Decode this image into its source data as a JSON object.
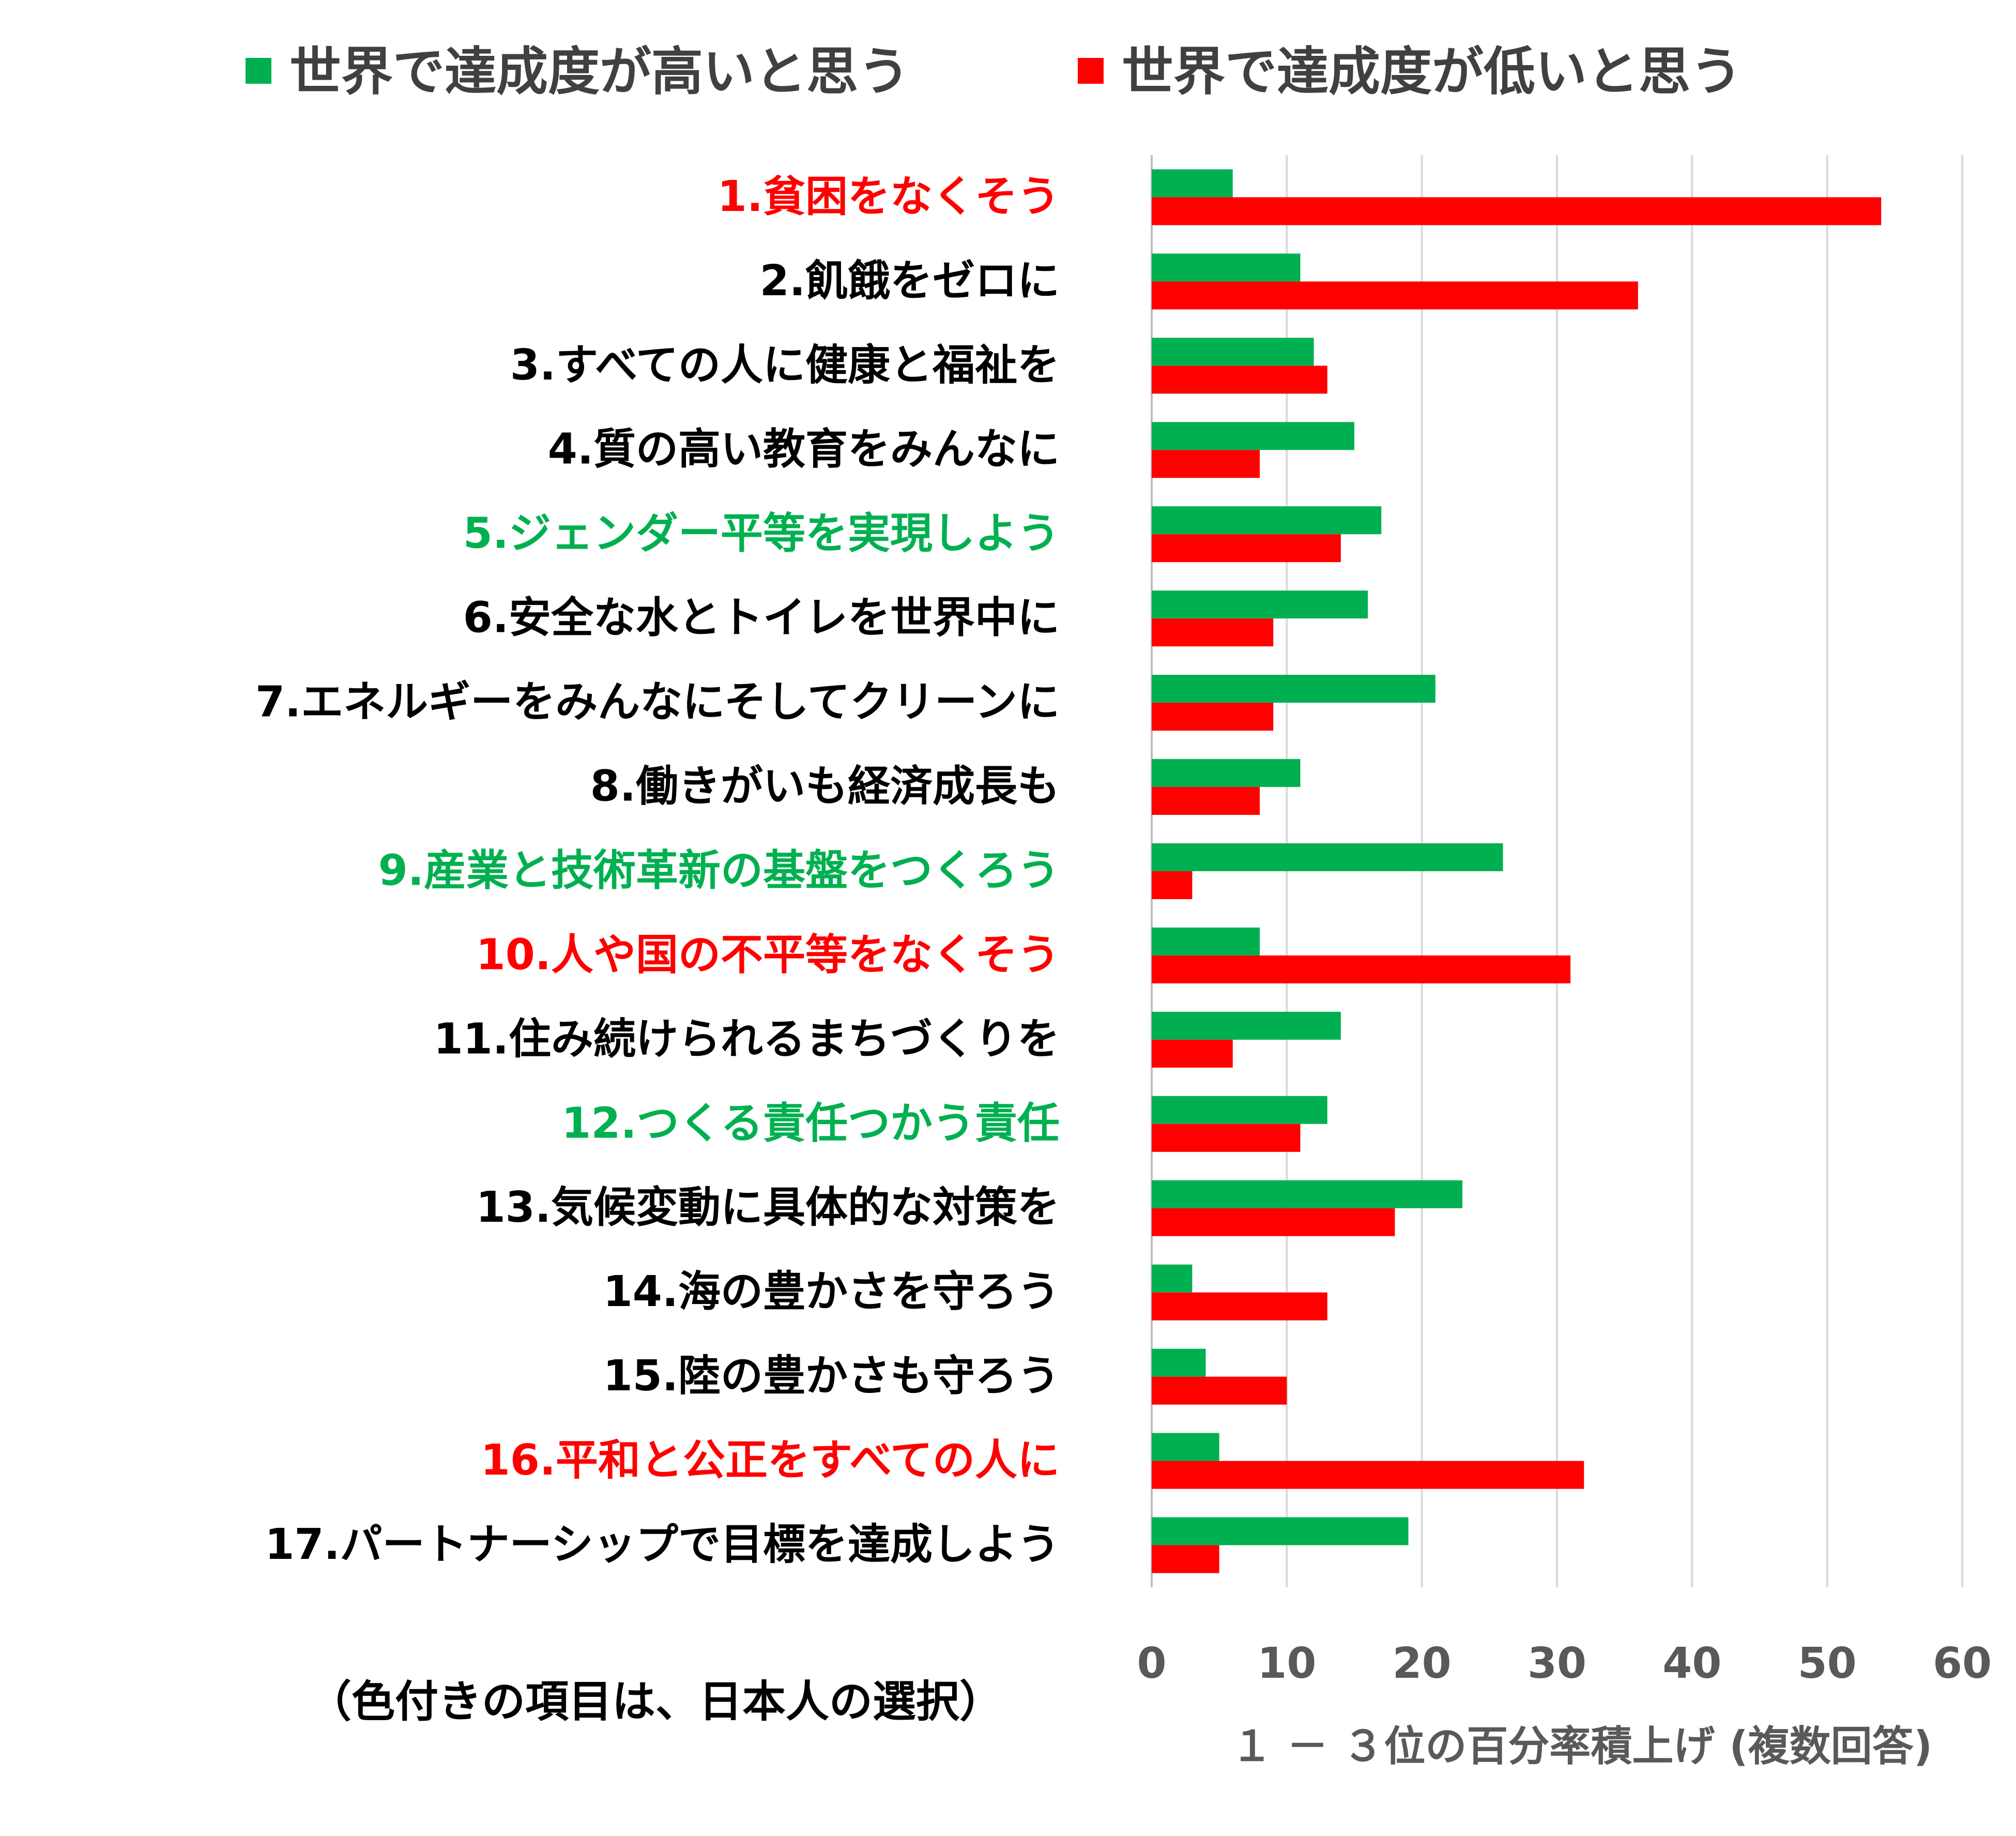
{
  "chart_data": {
    "type": "bar",
    "orientation": "horizontal",
    "categories": [
      "1.貧困をなくそう",
      "2.飢餓をゼロに",
      "3.すべての人に健康と福祉を",
      "4.質の高い教育をみんなに",
      "5.ジェンダー平等を実現しよう",
      "6.安全な水とトイレを世界中に",
      "7.エネルギーをみんなにそしてクリーンに",
      "8.働きがいも経済成長も",
      "9.産業と技術革新の基盤をつくろう",
      "10.人や国の不平等をなくそう",
      "11.住み続けられるまちづくりを",
      "12.つくる責任つかう責任",
      "13.気候変動に具体的な対策を",
      "14.海の豊かさを守ろう",
      "15.陸の豊かさも守ろう",
      "16.平和と公正をすべての人に",
      "17.パートナーシップで目標を達成しよう"
    ],
    "category_colors": [
      "#ff0000",
      "#000000",
      "#000000",
      "#000000",
      "#00b050",
      "#000000",
      "#000000",
      "#000000",
      "#00b050",
      "#ff0000",
      "#000000",
      "#00b050",
      "#000000",
      "#000000",
      "#000000",
      "#ff0000",
      "#000000"
    ],
    "series": [
      {
        "name": "世界で達成度が高いと思う",
        "color": "#00b050",
        "values": [
          6,
          11,
          12,
          15,
          17,
          16,
          21,
          11,
          26,
          8,
          14,
          13,
          23,
          3,
          4,
          5,
          19
        ]
      },
      {
        "name": "世界で達成度が低いと思う",
        "color": "#ff0000",
        "values": [
          54,
          36,
          13,
          8,
          14,
          9,
          9,
          8,
          3,
          31,
          6,
          11,
          18,
          13,
          10,
          32,
          5
        ]
      }
    ],
    "xlim": [
      0,
      60
    ],
    "xticks": [
      0,
      10,
      20,
      30,
      40,
      50,
      60
    ],
    "xlabel": "１ － ３位の百分率積上げ (複数回答)",
    "ylabel": "",
    "title": "",
    "grid": "vertical",
    "legend_position": "top",
    "note": "（色付きの項目は、日本人の選択）"
  }
}
